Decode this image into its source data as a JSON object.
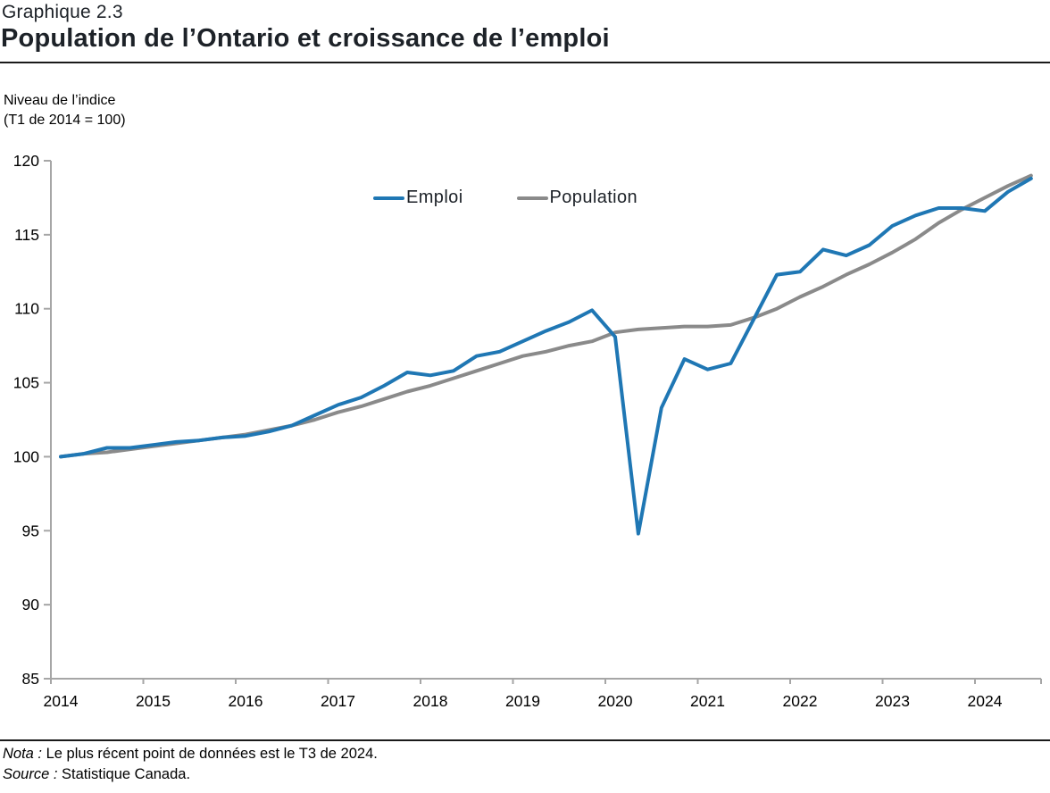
{
  "header": {
    "kicker": "Graphique 2.3",
    "title": "Population de l’Ontario et croissance de l’emploi"
  },
  "axis_caption": {
    "line1": "Niveau de l’indice",
    "line2": "(T1 de 2014 = 100)"
  },
  "footer": {
    "nota_label": "Nota :",
    "nota_text": " Le plus récent point de données est le T3 de 2024.",
    "source_label": "Source :",
    "source_text": " Statistique Canada."
  },
  "colors": {
    "emploi": "#1F77B4",
    "population": "#8A8A8A",
    "axis": "#A6A6A6",
    "text": "#000000"
  },
  "chart_data": {
    "type": "line",
    "title": "Population de l’Ontario et croissance de l’emploi",
    "ylabel": "Niveau de l’indice (T1 de 2014 = 100)",
    "ylim": [
      85,
      120
    ],
    "ytick_step": 5,
    "yticks": [
      85,
      90,
      95,
      100,
      105,
      110,
      115,
      120
    ],
    "grid": false,
    "legend_position": "top-center-inside",
    "x_frequency": "trimestrielle",
    "x_start_label": "T1 2014",
    "x_end_label": "T3 2024",
    "x_year_labels": [
      "2014",
      "2015",
      "2016",
      "2017",
      "2018",
      "2019",
      "2020",
      "2021",
      "2022",
      "2023",
      "2024"
    ],
    "series": [
      {
        "name": "Emploi",
        "color": "#1F77B4",
        "values": [
          100.0,
          100.2,
          100.6,
          100.6,
          100.8,
          101.0,
          101.1,
          101.3,
          101.4,
          101.7,
          102.1,
          102.8,
          103.5,
          104.0,
          104.8,
          105.7,
          105.5,
          105.8,
          106.8,
          107.1,
          107.8,
          108.5,
          109.1,
          109.9,
          108.1,
          94.8,
          103.3,
          106.6,
          105.9,
          106.3,
          109.3,
          112.3,
          112.5,
          114.0,
          113.6,
          114.3,
          115.6,
          116.3,
          116.8,
          116.8,
          116.6,
          117.9,
          118.8
        ]
      },
      {
        "name": "Population",
        "color": "#8A8A8A",
        "values": [
          100.0,
          100.2,
          100.3,
          100.5,
          100.7,
          100.9,
          101.1,
          101.3,
          101.5,
          101.8,
          102.1,
          102.5,
          103.0,
          103.4,
          103.9,
          104.4,
          104.8,
          105.3,
          105.8,
          106.3,
          106.8,
          107.1,
          107.5,
          107.8,
          108.4,
          108.6,
          108.7,
          108.8,
          108.8,
          108.9,
          109.4,
          110.0,
          110.8,
          111.5,
          112.3,
          113.0,
          113.8,
          114.7,
          115.8,
          116.7,
          117.5,
          118.3,
          119.0
        ]
      }
    ]
  }
}
